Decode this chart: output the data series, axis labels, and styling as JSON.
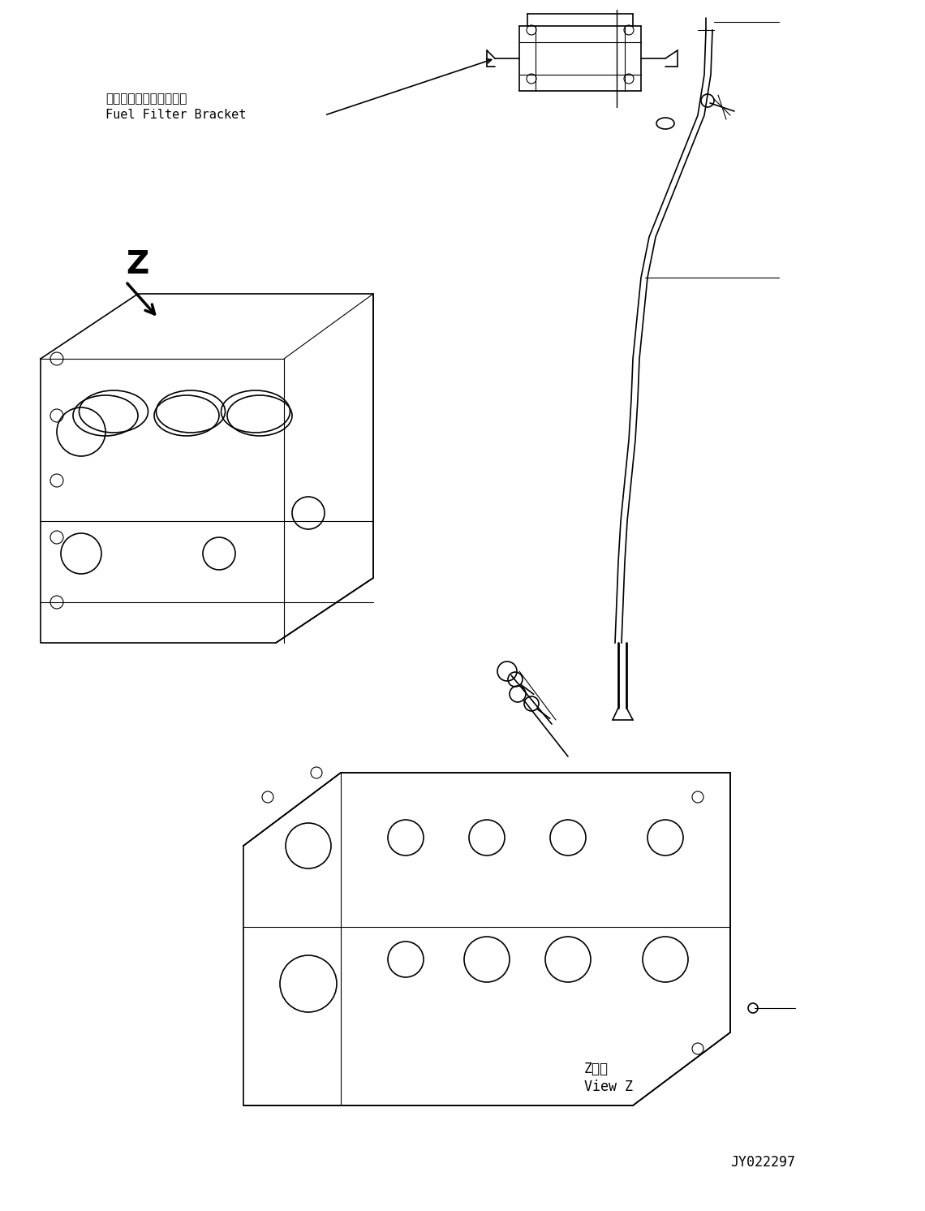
{
  "bg_color": "#ffffff",
  "line_color": "#000000",
  "title_text": "",
  "label_fuel_filter_jp": "燃料フィルタブラケット",
  "label_fuel_filter_en": "Fuel Filter Bracket",
  "label_z": "Z",
  "label_z_view_jp": "Z　視",
  "label_z_view_en": "View Z",
  "label_part_num": "JY022297",
  "fig_width": 11.4,
  "fig_height": 14.92,
  "dpi": 100
}
